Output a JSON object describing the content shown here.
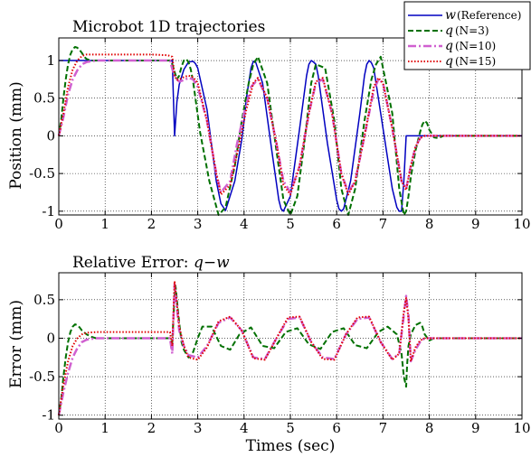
{
  "chart_data": [
    {
      "type": "line",
      "title": "Microbot 1D trajectories",
      "xlabel": "",
      "ylabel": "Position (mm)",
      "xlim": [
        0,
        10
      ],
      "ylim": [
        -1.05,
        1.3
      ],
      "xticks": [
        "0",
        "1",
        "2",
        "3",
        "4",
        "5",
        "6",
        "7",
        "8",
        "9",
        "10"
      ],
      "yticks": [
        {
          "v": -1,
          "t": "-1"
        },
        {
          "v": -0.5,
          "t": "-0.5"
        },
        {
          "v": 0,
          "t": "0"
        },
        {
          "v": 0.5,
          "t": "0.5"
        },
        {
          "v": 1,
          "t": "1"
        }
      ],
      "grid": true,
      "legend": {
        "placement": "top-right",
        "entries": [
          {
            "var": "w",
            "label": "(Reference)",
            "color": "#0000c0",
            "style": "solid"
          },
          {
            "var": "q",
            "label": "(N=3)",
            "color": "#007000",
            "style": "dashed"
          },
          {
            "var": "q",
            "label": "(N=10)",
            "color": "#d060d0",
            "style": "dashdot"
          },
          {
            "var": "q",
            "label": "(N=15)",
            "color": "#e00000",
            "style": "dotted"
          }
        ]
      },
      "series": [
        {
          "key": "w",
          "color": "#0000c0",
          "style": "solid",
          "x": [
            0,
            2.45,
            2.5,
            2.55,
            2.6,
            2.7,
            2.8,
            2.9,
            2.95,
            3.0,
            3.2,
            3.4,
            3.5,
            3.6,
            3.8,
            3.95,
            4.0,
            4.05,
            4.15,
            4.2,
            4.25,
            4.4,
            4.6,
            4.75,
            4.8,
            4.85,
            5.0,
            5.2,
            5.35,
            5.4,
            5.45,
            5.5,
            5.55,
            5.6,
            5.8,
            6.0,
            6.05,
            6.1,
            6.15,
            6.3,
            6.5,
            6.6,
            6.65,
            6.7,
            6.75,
            6.8,
            7.0,
            7.2,
            7.3,
            7.35,
            7.4,
            7.45,
            7.5,
            7.55,
            7.6,
            10
          ],
          "y": [
            1,
            1,
            0,
            0.45,
            0.68,
            0.88,
            0.98,
            0.99,
            0.96,
            0.9,
            0.35,
            -0.6,
            -0.9,
            -0.99,
            -0.6,
            -0.05,
            0.2,
            0.5,
            0.9,
            0.99,
            0.98,
            0.7,
            -0.2,
            -0.85,
            -0.97,
            -1,
            -0.8,
            0.1,
            0.8,
            0.95,
            1,
            0.98,
            0.95,
            0.8,
            -0.1,
            -0.85,
            -0.97,
            -1,
            -0.97,
            -0.6,
            0.3,
            0.8,
            0.95,
            1,
            0.97,
            0.9,
            0.1,
            -0.7,
            -0.95,
            -1,
            -1,
            -0.6,
            0,
            0,
            0,
            0
          ]
        },
        {
          "key": "q3",
          "color": "#007000",
          "style": "dashed",
          "x": [
            0,
            0.05,
            0.1,
            0.15,
            0.2,
            0.25,
            0.3,
            0.35,
            0.4,
            0.45,
            0.5,
            0.55,
            0.6,
            0.7,
            0.8,
            1.0,
            1.5,
            2.0,
            2.4,
            2.45,
            2.5,
            2.55,
            2.6,
            2.65,
            2.7,
            2.75,
            2.8,
            2.85,
            2.9,
            2.95,
            3.05,
            3.25,
            3.45,
            3.6,
            3.8,
            3.95,
            4.1,
            4.2,
            4.3,
            4.5,
            4.7,
            4.85,
            5.0,
            5.15,
            5.3,
            5.45,
            5.55,
            5.75,
            5.95,
            6.1,
            6.25,
            6.4,
            6.6,
            6.75,
            6.85,
            6.95,
            7.2,
            7.35,
            7.45,
            7.5,
            7.55,
            7.6,
            7.7,
            7.8,
            7.85,
            7.9,
            7.95,
            8.0,
            8.1,
            8.2,
            8.3,
            10
          ],
          "y": [
            0,
            0.2,
            0.5,
            0.75,
            0.95,
            1.08,
            1.15,
            1.18,
            1.17,
            1.14,
            1.1,
            1.05,
            1.02,
            1.0,
            1.0,
            1.0,
            1.0,
            1.0,
            1.0,
            0.95,
            0.85,
            0.75,
            0.8,
            0.92,
            1.0,
            1.02,
            0.98,
            0.88,
            0.72,
            0.5,
            0.05,
            -0.6,
            -1.05,
            -0.95,
            -0.4,
            0.2,
            0.7,
            0.95,
            1.05,
            0.7,
            -0.2,
            -0.85,
            -1.05,
            -0.8,
            -0.1,
            0.7,
            0.95,
            0.9,
            0.2,
            -0.7,
            -1.05,
            -0.7,
            0.2,
            0.75,
            0.95,
            1.05,
            0.3,
            -0.7,
            -1.05,
            -1.0,
            -0.8,
            -0.55,
            -0.2,
            0.05,
            0.15,
            0.2,
            0.17,
            0.08,
            -0.02,
            -0.03,
            0,
            0
          ]
        },
        {
          "key": "q10",
          "color": "#d060d0",
          "style": "dashdot",
          "x": [
            0,
            0.1,
            0.2,
            0.3,
            0.4,
            0.5,
            0.6,
            0.7,
            0.8,
            1.0,
            1.5,
            2.0,
            2.4,
            2.5,
            2.6,
            2.7,
            2.8,
            2.9,
            3.0,
            3.2,
            3.4,
            3.5,
            3.7,
            3.85,
            4.0,
            4.15,
            4.3,
            4.5,
            4.7,
            4.85,
            5.0,
            5.2,
            5.4,
            5.55,
            5.7,
            5.9,
            6.1,
            6.25,
            6.4,
            6.6,
            6.8,
            6.9,
            7.0,
            7.2,
            7.4,
            7.5,
            7.6,
            7.7,
            7.8,
            7.9,
            8.0,
            10
          ],
          "y": [
            0,
            0.25,
            0.55,
            0.75,
            0.87,
            0.95,
            0.98,
            0.99,
            1.0,
            1.0,
            1.0,
            1.0,
            1.0,
            0.78,
            0.72,
            0.74,
            0.77,
            0.75,
            0.65,
            0.2,
            -0.5,
            -0.75,
            -0.6,
            -0.1,
            0.3,
            0.65,
            0.75,
            0.5,
            -0.1,
            -0.6,
            -0.75,
            -0.4,
            0.3,
            0.7,
            0.75,
            0.3,
            -0.5,
            -0.75,
            -0.6,
            0.0,
            0.6,
            0.75,
            0.7,
            0.1,
            -0.6,
            -0.7,
            -0.4,
            -0.15,
            -0.03,
            0,
            0,
            0
          ]
        },
        {
          "key": "q15",
          "color": "#e00000",
          "style": "dotted",
          "x": [
            0,
            0.1,
            0.2,
            0.3,
            0.4,
            0.5,
            0.6,
            0.8,
            1.0,
            1.5,
            2.0,
            2.35,
            2.45,
            2.5,
            2.55,
            2.6,
            2.7,
            2.8,
            2.9,
            3.0,
            3.2,
            3.4,
            3.5,
            3.7,
            3.9,
            4.05,
            4.2,
            4.3,
            4.5,
            4.7,
            4.85,
            5.0,
            5.2,
            5.4,
            5.55,
            5.7,
            5.9,
            6.1,
            6.25,
            6.4,
            6.6,
            6.8,
            6.9,
            7.0,
            7.2,
            7.4,
            7.5,
            7.6,
            7.7,
            7.8,
            7.9,
            8.0,
            10
          ],
          "y": [
            0,
            0.3,
            0.65,
            0.88,
            1.0,
            1.06,
            1.08,
            1.08,
            1.08,
            1.08,
            1.08,
            1.07,
            1.05,
            0.8,
            0.74,
            0.75,
            0.78,
            0.8,
            0.78,
            0.7,
            0.2,
            -0.5,
            -0.78,
            -0.65,
            -0.1,
            0.35,
            0.7,
            0.77,
            0.5,
            -0.1,
            -0.65,
            -0.78,
            -0.4,
            0.3,
            0.72,
            0.77,
            0.3,
            -0.5,
            -0.78,
            -0.6,
            0.0,
            0.65,
            0.77,
            0.7,
            0.1,
            -0.6,
            -0.72,
            -0.4,
            -0.15,
            -0.03,
            0,
            0,
            0
          ]
        }
      ]
    },
    {
      "type": "line",
      "title": "Relative Error: q−w",
      "title_plain": "Relative Error: ",
      "title_math": "q−w",
      "xlabel": "Times (sec)",
      "ylabel": "Error (mm)",
      "xlim": [
        0,
        10
      ],
      "ylim": [
        -1.05,
        0.85
      ],
      "xticks": [
        "0",
        "1",
        "2",
        "3",
        "4",
        "5",
        "6",
        "7",
        "8",
        "9",
        "10"
      ],
      "yticks": [
        {
          "v": -1,
          "t": "-1"
        },
        {
          "v": -0.5,
          "t": "-0.5"
        },
        {
          "v": 0,
          "t": "0"
        },
        {
          "v": 0.5,
          "t": "0.5"
        }
      ],
      "grid": true,
      "series": [
        {
          "key": "e3",
          "color": "#007000",
          "style": "dashed",
          "x": [
            0,
            0.05,
            0.1,
            0.15,
            0.2,
            0.25,
            0.3,
            0.35,
            0.4,
            0.45,
            0.5,
            0.6,
            0.7,
            0.8,
            0.9,
            1.0,
            1.5,
            2.0,
            2.4,
            2.45,
            2.5,
            2.52,
            2.55,
            2.6,
            2.65,
            2.7,
            2.8,
            2.9,
            3.0,
            3.1,
            3.3,
            3.5,
            3.7,
            3.9,
            4.15,
            4.4,
            4.65,
            4.9,
            5.15,
            5.4,
            5.65,
            5.9,
            6.15,
            6.4,
            6.65,
            6.9,
            7.1,
            7.3,
            7.4,
            7.45,
            7.5,
            7.52,
            7.55,
            7.6,
            7.7,
            7.8,
            7.85,
            7.9,
            8.0,
            8.1,
            8.2,
            10
          ],
          "y": [
            -1,
            -0.8,
            -0.5,
            -0.25,
            -0.05,
            0.08,
            0.15,
            0.18,
            0.17,
            0.14,
            0.1,
            0.05,
            0.02,
            0.0,
            0.0,
            0.0,
            0.0,
            0.0,
            0.0,
            -0.05,
            0.55,
            0.68,
            0.5,
            0.2,
            -0.05,
            -0.15,
            -0.25,
            -0.18,
            0.0,
            0.15,
            0.15,
            -0.1,
            -0.15,
            0.05,
            0.14,
            -0.1,
            -0.13,
            0.08,
            0.13,
            -0.08,
            -0.14,
            0.08,
            0.13,
            -0.09,
            -0.13,
            0.08,
            0.15,
            0.05,
            -0.2,
            -0.5,
            -0.63,
            -0.35,
            -0.1,
            0.05,
            0.17,
            0.2,
            0.15,
            0.05,
            -0.03,
            0.0,
            0.0,
            0.0
          ]
        },
        {
          "key": "e10",
          "color": "#d060d0",
          "style": "dashdot",
          "x": [
            0,
            0.05,
            0.1,
            0.2,
            0.3,
            0.4,
            0.5,
            0.6,
            0.7,
            0.8,
            1.0,
            1.5,
            2.0,
            2.4,
            2.45,
            2.5,
            2.55,
            2.6,
            2.7,
            2.8,
            3.0,
            3.2,
            3.45,
            3.7,
            3.95,
            4.2,
            4.45,
            4.7,
            4.95,
            5.2,
            5.45,
            5.7,
            5.95,
            6.2,
            6.45,
            6.7,
            6.95,
            7.2,
            7.35,
            7.45,
            7.5,
            7.55,
            7.6,
            7.7,
            7.8,
            7.9,
            8.0,
            10
          ],
          "y": [
            -1,
            -0.85,
            -0.7,
            -0.45,
            -0.25,
            -0.13,
            -0.05,
            -0.02,
            -0.01,
            0.0,
            0.0,
            0.0,
            0.0,
            0.0,
            -0.2,
            0.7,
            0.4,
            0.1,
            -0.1,
            -0.22,
            -0.25,
            -0.1,
            0.2,
            0.27,
            0.1,
            -0.25,
            -0.27,
            0.0,
            0.25,
            0.27,
            -0.05,
            -0.25,
            -0.27,
            0.05,
            0.25,
            0.27,
            -0.05,
            -0.27,
            -0.2,
            0.3,
            0.55,
            0.3,
            -0.3,
            -0.15,
            -0.05,
            0.0,
            0.0,
            0.0
          ]
        },
        {
          "key": "e15",
          "color": "#e00000",
          "style": "dotted",
          "x": [
            0,
            0.05,
            0.1,
            0.2,
            0.3,
            0.4,
            0.5,
            0.6,
            0.8,
            1.0,
            1.5,
            2.0,
            2.4,
            2.45,
            2.5,
            2.55,
            2.6,
            2.7,
            2.8,
            3.0,
            3.2,
            3.45,
            3.7,
            3.95,
            4.2,
            4.45,
            4.7,
            4.95,
            5.2,
            5.45,
            5.7,
            5.95,
            6.2,
            6.45,
            6.7,
            6.95,
            7.2,
            7.35,
            7.45,
            7.5,
            7.55,
            7.6,
            7.7,
            7.8,
            7.9,
            8.0,
            10
          ],
          "y": [
            -1,
            -0.8,
            -0.6,
            -0.3,
            -0.1,
            0.0,
            0.05,
            0.07,
            0.08,
            0.08,
            0.08,
            0.08,
            0.08,
            -0.1,
            0.74,
            0.45,
            0.15,
            -0.1,
            -0.25,
            -0.28,
            -0.12,
            0.22,
            0.28,
            0.1,
            -0.26,
            -0.28,
            0.0,
            0.27,
            0.28,
            -0.05,
            -0.27,
            -0.28,
            0.05,
            0.27,
            0.28,
            -0.05,
            -0.28,
            -0.2,
            0.35,
            0.52,
            0.25,
            -0.3,
            -0.12,
            -0.03,
            0.0,
            0.0,
            0.0
          ]
        }
      ]
    }
  ]
}
